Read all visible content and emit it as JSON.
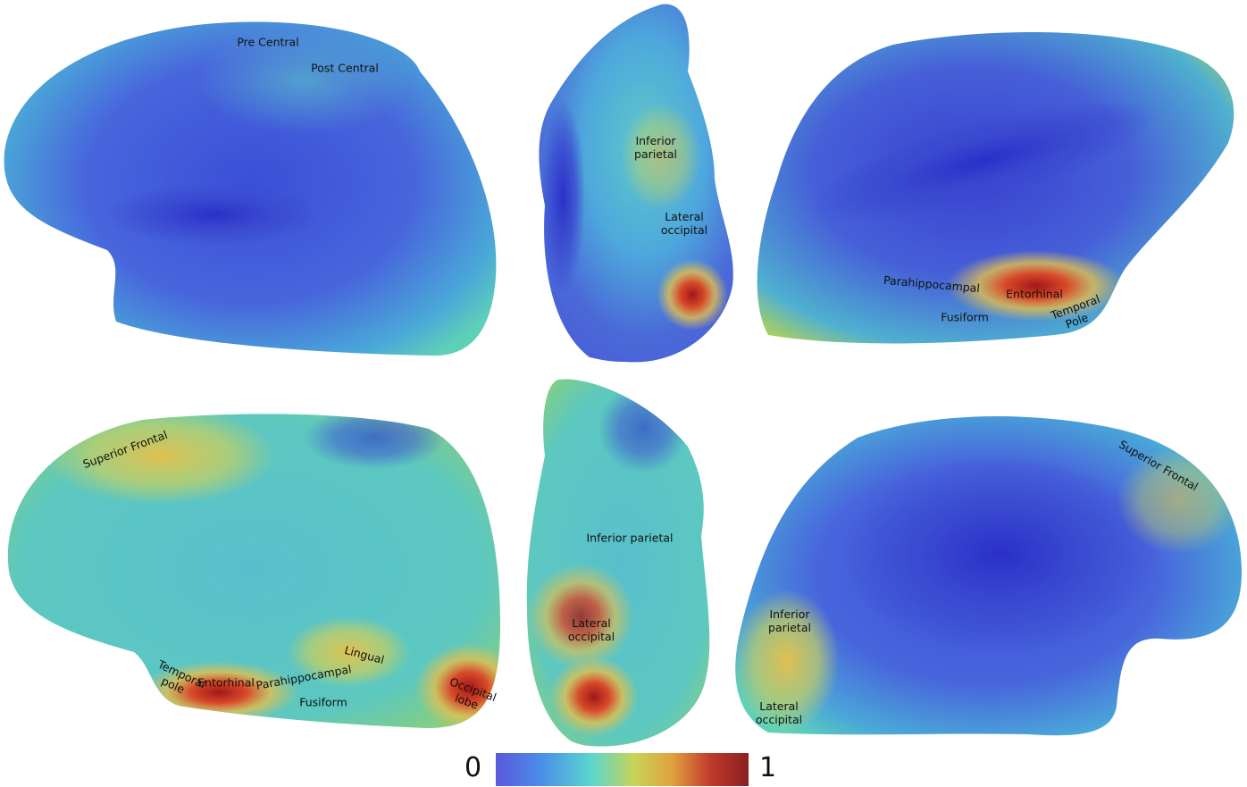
{
  "panels": [
    {
      "labels": [
        "Pre Central",
        "Post Central"
      ]
    },
    {
      "labels": [
        "Inferior parietal",
        "Lateral occipital"
      ]
    },
    {
      "labels": [
        "Parahippocampal",
        "Entorhinal",
        "Fusiform",
        "Temporal Pole"
      ]
    },
    {
      "labels": [
        "Superior Frontal",
        "Temporal pole",
        "Entorhinal",
        "Parahippocampal",
        "Lingual",
        "Fusiform",
        "Occipital lobe"
      ]
    },
    {
      "labels": [
        "Inferior parietal",
        "Lateral occipital"
      ]
    },
    {
      "labels": [
        "Superior Frontal",
        "Inferior parietal",
        "Lateral occipital"
      ]
    }
  ],
  "colorbar": {
    "ticks": [
      0,
      1
    ]
  }
}
